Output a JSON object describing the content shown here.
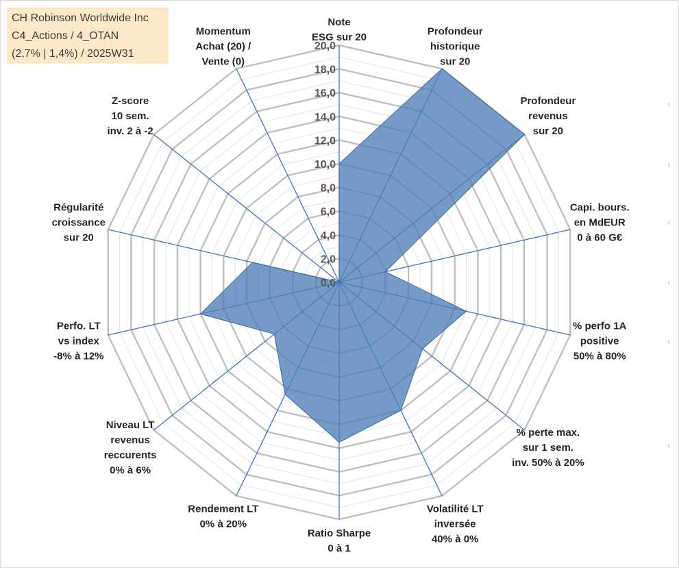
{
  "title": {
    "line1": "CH Robinson Worldwide Inc",
    "line2": "C4_Actions / 4_OTAN",
    "line3": "(2,7% | 1,4%) / 2025W31"
  },
  "colors": {
    "grid": "#bfbfbf",
    "spoke": "#4472c4",
    "fill": "#4f7fb6",
    "title_bg": "#fde9c7"
  },
  "chart_data": {
    "type": "radar",
    "rmin": 0,
    "rmax": 20,
    "ticks": [
      "0,0",
      "2,0",
      "4,0",
      "6,0",
      "8,0",
      "10,0",
      "12,0",
      "14,0",
      "16,0",
      "18,0",
      "20,0"
    ],
    "grid_major_step": 2,
    "grid_minor_step": 1,
    "axes": [
      {
        "label": [
          "Note",
          "ESG sur 20"
        ],
        "value": 10.0
      },
      {
        "label": [
          "Profondeur",
          "historique",
          "sur 20"
        ],
        "value": 20.0
      },
      {
        "label": [
          "Profondeur",
          "revenus",
          "sur 20"
        ],
        "value": 20.0
      },
      {
        "label": [
          "Capi. bours.",
          "en MdEUR",
          "0 à 60 G€"
        ],
        "value": 4.0
      },
      {
        "label": [
          "% perfo 1A",
          "positive",
          "50% à 80%"
        ],
        "value": 11.0
      },
      {
        "label": [
          "% perte max.",
          "sur 1 sem.",
          "inv. 50% à 20%"
        ],
        "value": 9.0
      },
      {
        "label": [
          "Volatilité LT",
          "inversée",
          "40% à 0%"
        ],
        "value": 12.0
      },
      {
        "label": [
          "Ratio Sharpe",
          "0 à 1"
        ],
        "value": 13.5
      },
      {
        "label": [
          "Rendement LT",
          "0% à 20%"
        ],
        "value": 10.5
      },
      {
        "label": [
          "Niveau LT",
          "revenus",
          "reccurents",
          "0% à 6%"
        ],
        "value": 7.0
      },
      {
        "label": [
          "Perfo. LT",
          "vs index",
          "-8% à 12%"
        ],
        "value": 12.0
      },
      {
        "label": [
          "Régularité",
          "croissance",
          "sur 20"
        ],
        "value": 7.5
      },
      {
        "label": [
          "Z-score",
          "10 sem.",
          "inv. 2 à -2"
        ],
        "value": 0.0
      },
      {
        "label": [
          "Momentum",
          "Achat (20) /",
          "Vente (0)"
        ],
        "value": 0.0
      }
    ]
  }
}
